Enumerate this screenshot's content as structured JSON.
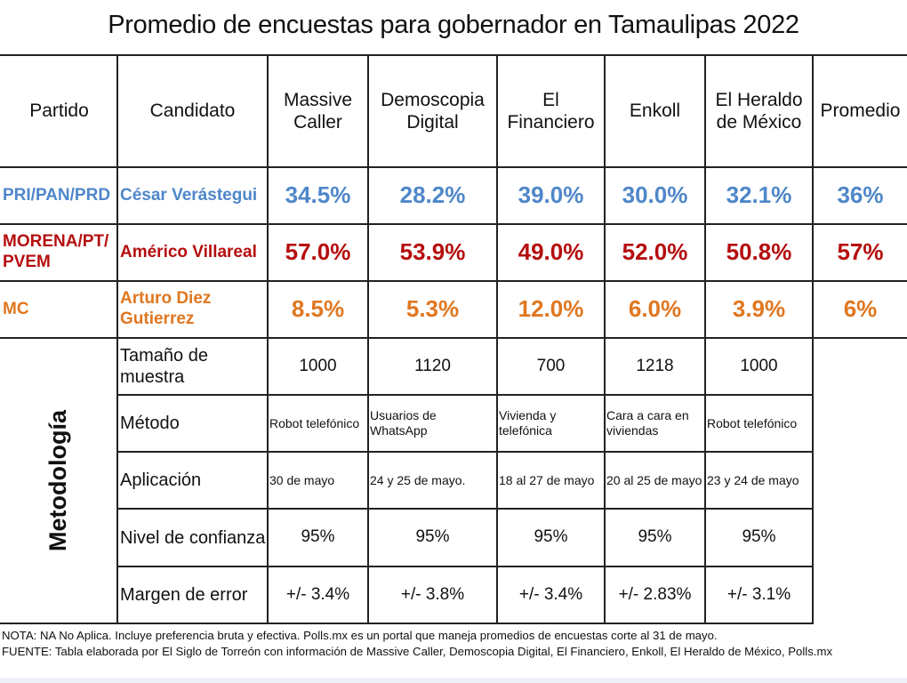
{
  "title": "Promedio de encuestas para gobernador en Tamaulipas 2022",
  "colors": {
    "pri": "#4f87c9",
    "morena": "#b50e0e",
    "mc": "#e07720"
  },
  "header": {
    "partido": "Partido",
    "candidato": "Candidato",
    "pollsters": [
      "Massive Caller",
      "Demoscopia Digital",
      "El Financiero",
      "Enkoll",
      "El Heraldo de México"
    ],
    "promedio": "Promedio"
  },
  "rows": [
    {
      "partido": "PRI/PAN/PRD",
      "candidato": "César Verástegui",
      "values": [
        "34.5%",
        "28.2%",
        "39.0%",
        "30.0%",
        "32.1%"
      ],
      "promedio": "36%"
    },
    {
      "partido": "MORENA/PT/ PVEM",
      "candidato": "Américo Villareal",
      "values": [
        "57.0%",
        "53.9%",
        "49.0%",
        "52.0%",
        "50.8%"
      ],
      "promedio": "57%"
    },
    {
      "partido": "MC",
      "candidato": "Arturo Diez Gutierrez",
      "values": [
        "8.5%",
        "5.3%",
        "12.0%",
        "6.0%",
        "3.9%"
      ],
      "promedio": "6%"
    }
  ],
  "metodologia": {
    "label": "Metodología",
    "rows": [
      {
        "label": "Tamaño de muestra",
        "values": [
          "1000",
          "1120",
          "700",
          "1218",
          "1000"
        ]
      },
      {
        "label": "Método",
        "values": [
          "Robot telefónico",
          "Usuarios de WhatsApp",
          "Vivienda y telefónica",
          "Cara a cara en viviendas",
          "Robot telefónico"
        ]
      },
      {
        "label": "Aplicación",
        "values": [
          "30 de mayo",
          "24 y 25 de mayo.",
          "18 al 27 de mayo",
          "20 al 25 de mayo",
          "23 y 24 de mayo"
        ]
      },
      {
        "label": "Nivel de confianza",
        "values": [
          "95%",
          "95%",
          "95%",
          "95%",
          "95%"
        ]
      },
      {
        "label": "Margen de error",
        "values": [
          "+/- 3.4%",
          "+/- 3.8%",
          "+/- 3.4%",
          "+/- 2.83%",
          "+/- 3.1%"
        ]
      }
    ]
  },
  "notes": {
    "nota": "NOTA: NA No Aplica. Incluye preferencia bruta y efectiva. Polls.mx es un portal que maneja promedios de encuestas corte al 31 de mayo.",
    "fuente": "FUENTE: Tabla elaborada por El Siglo de Torreón con información de Massive Caller, Demoscopia Digital, El Financiero, Enkoll, El Heraldo de México, Polls.mx"
  }
}
